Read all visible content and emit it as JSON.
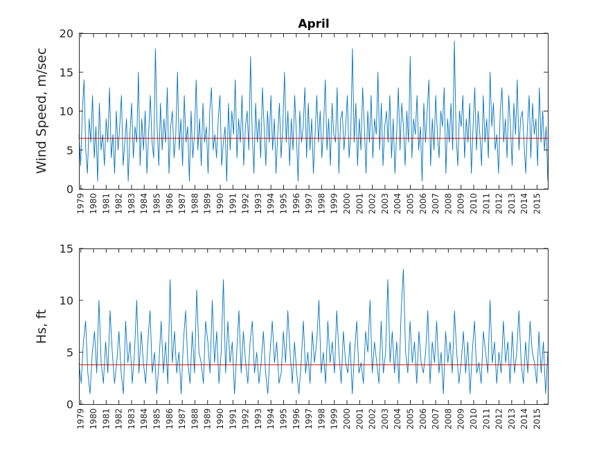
{
  "chart_data": [
    {
      "type": "line",
      "title": "April",
      "xlabel": "",
      "ylabel": "Wind Speed, m/sec",
      "ylim": [
        0,
        20
      ],
      "yticks": [
        0,
        5,
        10,
        15,
        20
      ],
      "xlim": [
        1979,
        2016
      ],
      "x_tick_labels": [
        "1979",
        "1980",
        "1981",
        "1982",
        "1983",
        "1984",
        "1985",
        "1986",
        "1987",
        "1988",
        "1989",
        "1990",
        "1991",
        "1992",
        "1993",
        "1994",
        "1995",
        "1996",
        "1997",
        "1998",
        "1999",
        "2000",
        "2001",
        "2002",
        "2003",
        "2004",
        "2005",
        "2006",
        "2007",
        "2008",
        "2009",
        "2010",
        "2011",
        "2012",
        "2013",
        "2014",
        "2015"
      ],
      "series_color": "#0072BD",
      "reference_line": {
        "y": 6.5,
        "color": "#D00000"
      },
      "series": [
        {
          "values": [
            7,
            3,
            10,
            14,
            5,
            2,
            9,
            6,
            12,
            4,
            8,
            1,
            11,
            5,
            7,
            3,
            9,
            6,
            13,
            4,
            7,
            2,
            10,
            5,
            8,
            12,
            3,
            6,
            9,
            1,
            7,
            11,
            4,
            8,
            6,
            15,
            3,
            9,
            5,
            10,
            2,
            7,
            12,
            6,
            4,
            18,
            8,
            3,
            11,
            5,
            9,
            6,
            13,
            2,
            8,
            10,
            4,
            7,
            15,
            5,
            9,
            3,
            12,
            6,
            8,
            1,
            10,
            4,
            7,
            14,
            5,
            9,
            3,
            11,
            6,
            8,
            2,
            10,
            13,
            5,
            7,
            4,
            9,
            12,
            3,
            6,
            8,
            1,
            11,
            5,
            10,
            7,
            14,
            4,
            9,
            6,
            12,
            3,
            8,
            10,
            5,
            17,
            7,
            2,
            11,
            6,
            9,
            4,
            13,
            8,
            3,
            10,
            6,
            12,
            5,
            9,
            2,
            7,
            11,
            4,
            8,
            15,
            6,
            10,
            3,
            9,
            5,
            12,
            7,
            1,
            10,
            6,
            8,
            13,
            4,
            11,
            5,
            9,
            2,
            7,
            12,
            6,
            10,
            4,
            8,
            14,
            5,
            9,
            3,
            11,
            7,
            6,
            13,
            2,
            9,
            10,
            5,
            8,
            12,
            4,
            7,
            18,
            6,
            11,
            3,
            9,
            5,
            13,
            8,
            2,
            10,
            6,
            12,
            4,
            9,
            7,
            15,
            5,
            11,
            3,
            8,
            10,
            6,
            12,
            4,
            9,
            2,
            7,
            13,
            5,
            11,
            8,
            3,
            10,
            6,
            17,
            4,
            9,
            7,
            12,
            5,
            8,
            1,
            11,
            6,
            10,
            14,
            3,
            9,
            5,
            12,
            7,
            4,
            10,
            8,
            13,
            2,
            9,
            6,
            11,
            5,
            19,
            7,
            3,
            10,
            8,
            12,
            4,
            9,
            6,
            11,
            2,
            8,
            13,
            5,
            10,
            7,
            3,
            12,
            6,
            9,
            4,
            15,
            8,
            11,
            5,
            7,
            2,
            10,
            13,
            6,
            9,
            4,
            12,
            8,
            3,
            11,
            7,
            14,
            5,
            9,
            10,
            6,
            2,
            8,
            12,
            4,
            11,
            7,
            9,
            3,
            13,
            6,
            10,
            5,
            8,
            1
          ]
        }
      ]
    },
    {
      "type": "line",
      "title": "",
      "xlabel": "",
      "ylabel": "Hs, ft",
      "ylim": [
        0,
        15
      ],
      "yticks": [
        0,
        5,
        10,
        15
      ],
      "xlim": [
        1979,
        2016
      ],
      "x_tick_labels": [
        "1979",
        "1980",
        "1981",
        "1982",
        "1983",
        "1984",
        "1985",
        "1986",
        "1987",
        "1988",
        "1989",
        "1990",
        "1991",
        "1992",
        "1993",
        "1994",
        "1995",
        "1996",
        "1997",
        "1998",
        "1999",
        "2000",
        "2001",
        "2002",
        "2003",
        "2004",
        "2005",
        "2006",
        "2007",
        "2008",
        "2009",
        "2010",
        "2011",
        "2012",
        "2013",
        "2014",
        "2015"
      ],
      "series_color": "#0072BD",
      "reference_line": {
        "y": 3.8,
        "color": "#D00000"
      },
      "series": [
        {
          "values": [
            4,
            2,
            6,
            8,
            3,
            1,
            5,
            7,
            3,
            10,
            4,
            2,
            6,
            3,
            9,
            5,
            2,
            4,
            7,
            3,
            1,
            8,
            4,
            6,
            2,
            5,
            10,
            3,
            7,
            4,
            2,
            6,
            9,
            3,
            5,
            1,
            4,
            8,
            3,
            6,
            2,
            12,
            4,
            7,
            3,
            5,
            1,
            6,
            9,
            4,
            2,
            7,
            3,
            11,
            5,
            4,
            2,
            8,
            6,
            3,
            10,
            4,
            7,
            2,
            5,
            12,
            3,
            8,
            4,
            6,
            1,
            5,
            9,
            3,
            7,
            4,
            2,
            6,
            8,
            3,
            5,
            2,
            4,
            7,
            3,
            1,
            5,
            8,
            4,
            6,
            2,
            3,
            7,
            4,
            9,
            5,
            2,
            6,
            3,
            1,
            4,
            8,
            3,
            5,
            2,
            7,
            4,
            6,
            10,
            3,
            5,
            2,
            8,
            4,
            6,
            3,
            9,
            5,
            2,
            7,
            4,
            3,
            6,
            1,
            5,
            8,
            3,
            4,
            2,
            7,
            5,
            10,
            3,
            6,
            4,
            2,
            8,
            3,
            5,
            12,
            4,
            7,
            3,
            6,
            2,
            9,
            13,
            5,
            3,
            8,
            4,
            6,
            2,
            7,
            4,
            3,
            5,
            9,
            2,
            6,
            4,
            8,
            3,
            5,
            1,
            7,
            4,
            6,
            3,
            9,
            5,
            2,
            4,
            7,
            3,
            6,
            1,
            5,
            8,
            3,
            4,
            2,
            7,
            5,
            3,
            10,
            4,
            6,
            2,
            5,
            3,
            8,
            4,
            6,
            2,
            7,
            3,
            5,
            9,
            4,
            2,
            6,
            3,
            8,
            5,
            4,
            2,
            7,
            3,
            6,
            1,
            5
          ]
        }
      ]
    }
  ]
}
